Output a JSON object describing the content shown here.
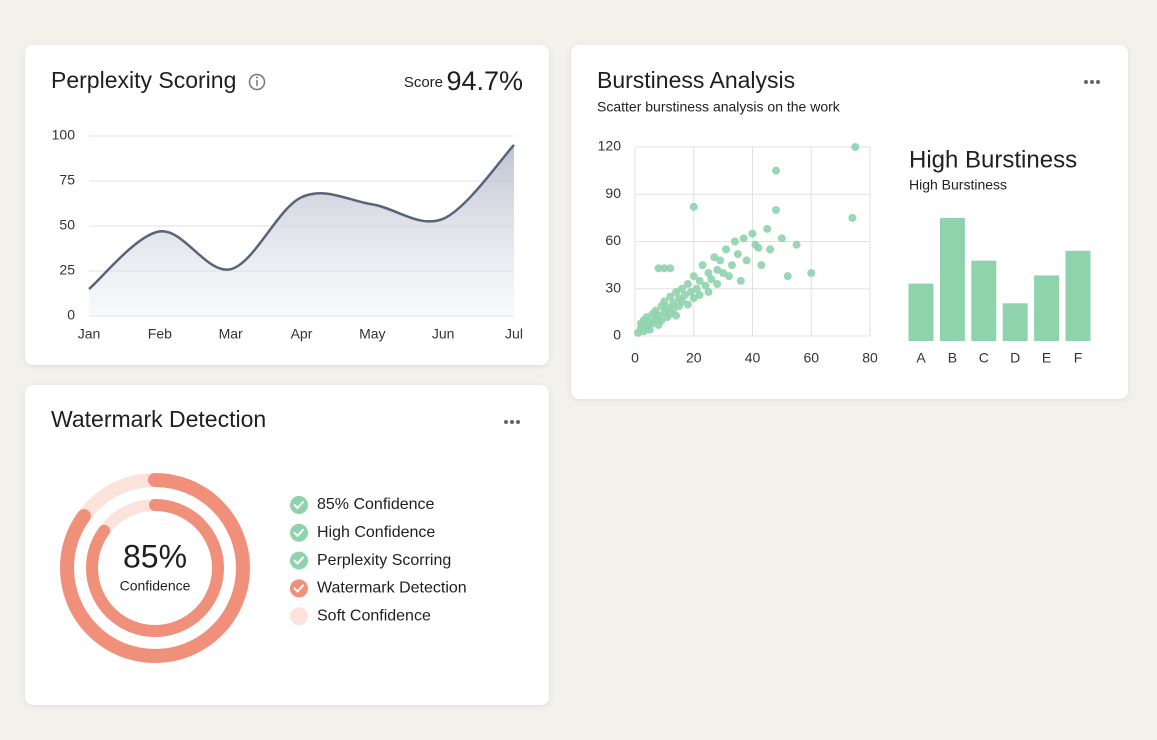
{
  "score_label": "Score",
  "score": "94.7%",
  "chart_data": [
    {
      "type": "area",
      "title": "Perplexity Scoring",
      "color": "#59647a",
      "categories": [
        "Jan",
        "Feb",
        "Mar",
        "Apr",
        "May",
        "Jun",
        "Jul"
      ],
      "values": [
        15,
        47,
        26,
        66,
        62,
        54,
        95
      ],
      "ylim": [
        0,
        100
      ],
      "yticks": [
        0,
        25,
        50,
        75,
        100
      ],
      "grid": true
    },
    {
      "type": "scatter",
      "title": "Burstiness Analysis",
      "subtitle": "Scatter burstiness analysis on the work",
      "color": "#8fd3ad",
      "x": [
        1,
        2,
        2,
        3,
        3,
        4,
        4,
        5,
        5,
        6,
        6,
        7,
        7,
        8,
        8,
        9,
        9,
        10,
        10,
        11,
        11,
        12,
        12,
        13,
        13,
        14,
        14,
        15,
        15,
        16,
        16,
        17,
        18,
        18,
        19,
        20,
        20,
        21,
        22,
        22,
        23,
        24,
        25,
        25,
        26,
        27,
        28,
        28,
        29,
        30,
        31,
        32,
        33,
        34,
        35,
        36,
        37,
        38,
        40,
        41,
        42,
        43,
        45,
        46,
        48,
        50,
        52,
        55,
        60,
        75,
        74,
        48,
        8,
        10,
        12,
        20
      ],
      "values": [
        2,
        5,
        8,
        3,
        10,
        6,
        12,
        4,
        9,
        14,
        8,
        11,
        16,
        7,
        13,
        19,
        10,
        15,
        22,
        12,
        18,
        14,
        25,
        17,
        21,
        13,
        28,
        19,
        24,
        22,
        30,
        26,
        20,
        33,
        28,
        24,
        38,
        30,
        35,
        26,
        45,
        32,
        40,
        28,
        36,
        50,
        42,
        33,
        48,
        40,
        55,
        38,
        45,
        60,
        52,
        35,
        62,
        48,
        65,
        58,
        56,
        45,
        68,
        55,
        80,
        62,
        38,
        58,
        40,
        120,
        75,
        105,
        43,
        43,
        43,
        82
      ],
      "xlim": [
        0,
        80
      ],
      "xticks": [
        0,
        20,
        40,
        60,
        80
      ],
      "ylim": [
        0,
        120
      ],
      "yticks": [
        0,
        30,
        60,
        90,
        120
      ],
      "grid": true
    },
    {
      "type": "bar",
      "title": "High Burstiness",
      "subtitle": "High Burstiness",
      "color": "#8fd3ad",
      "categories": [
        "A",
        "B",
        "C",
        "D",
        "E",
        "F"
      ],
      "values": [
        35,
        75,
        49,
        23,
        40,
        55
      ]
    },
    {
      "type": "donut",
      "title": "Watermark Detection",
      "value": 85,
      "value_label": "85%",
      "caption": "Confidence",
      "color": "#f0907a",
      "track_color": "#fbe3dc",
      "legend": [
        {
          "name": "85% Confidence",
          "color": "#8fd3ad",
          "check": true
        },
        {
          "name": "High Confidence",
          "color": "#8fd3ad",
          "check": true
        },
        {
          "name": "Perplexity Scorring",
          "color": "#8fd3ad",
          "check": true
        },
        {
          "name": "Watermark Detection",
          "color": "#f0907a",
          "check": true
        },
        {
          "name": "Soft Confidence",
          "color": "#fbe3dc",
          "check": false
        }
      ]
    }
  ]
}
